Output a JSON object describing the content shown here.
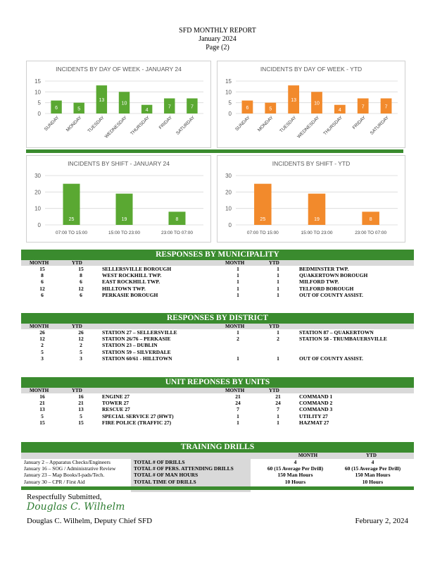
{
  "header": {
    "line1": "SFD MONTHLY REPORT",
    "line2": "January 2024",
    "line3": "Page (2)"
  },
  "charts": [
    {
      "type": "bar",
      "title": "INCIDENTS BY DAY OF WEEK - JANUARY 24",
      "color": "#5aa832",
      "categories": [
        "SUNDAY",
        "MONDAY",
        "TUESDAY",
        "WEDNESDAY",
        "THURSDAY",
        "FRIDAY",
        "SATURDAY"
      ],
      "values": [
        6,
        5,
        13,
        10,
        4,
        7,
        7
      ],
      "yticks": [
        0,
        5,
        10,
        15
      ],
      "ylim": [
        0,
        15
      ]
    },
    {
      "type": "bar",
      "title": "INCIDENTS BY DAY OF WEEK - YTD",
      "color": "#f28a2c",
      "categories": [
        "SUNDAY",
        "MONDAY",
        "TUESDAY",
        "WEDNESDAY",
        "THURSDAY",
        "FRIDAY",
        "SATURDAY"
      ],
      "values": [
        6,
        5,
        13,
        10,
        4,
        7,
        7
      ],
      "yticks": [
        0,
        5,
        10,
        15
      ],
      "ylim": [
        0,
        15
      ]
    },
    {
      "type": "bar",
      "title": "INCIDENTS BY SHIFT - JANUARY 24",
      "color": "#5aa832",
      "categories": [
        "07:00 TO 15:00",
        "15:00 TO 23:00",
        "23:00 TO 07:00"
      ],
      "values": [
        25,
        19,
        8
      ],
      "yticks": [
        0,
        10,
        20,
        30
      ],
      "ylim": [
        0,
        30
      ]
    },
    {
      "type": "bar",
      "title": "INCIDENTS BY SHIFT - YTD",
      "color": "#f28a2c",
      "categories": [
        "07:00 TO 15:00",
        "15:00 TO 23:00",
        "23:00 TO 07:00"
      ],
      "values": [
        25,
        19,
        8
      ],
      "yticks": [
        0,
        10,
        20,
        30
      ],
      "ylim": [
        0,
        30
      ]
    }
  ],
  "col_headers": {
    "month": "MONTH",
    "ytd": "YTD"
  },
  "municipality": {
    "title": "RESPONSES BY MUNICIPALITY",
    "rows": [
      {
        "m": "15",
        "y": "15",
        "name": "SELLERSVILLE BOROUGH",
        "m2": "1",
        "y2": "1",
        "name2": "BEDMINSTER TWP."
      },
      {
        "m": "8",
        "y": "8",
        "name": "WEST ROCKHILL TWP.",
        "m2": "1",
        "y2": "1",
        "name2": "QUAKERTOWN BOROUGH"
      },
      {
        "m": "6",
        "y": "6",
        "name": "EAST ROCKHILL TWP.",
        "m2": "1",
        "y2": "1",
        "name2": "MILFORD TWP."
      },
      {
        "m": "12",
        "y": "12",
        "name": "HILLTOWN TWP.",
        "m2": "1",
        "y2": "1",
        "name2": "TELFORD BOROUGH"
      },
      {
        "m": "6",
        "y": "6",
        "name": "PERKASIE BOROUGH",
        "m2": "1",
        "y2": "1",
        "name2": "OUT OF COUNTY ASSIST."
      }
    ]
  },
  "district": {
    "title": "RESPONSES BY DISTRICT",
    "rows": [
      {
        "m": "26",
        "y": "26",
        "name": "STATION 27 – SELLERSVILLE",
        "m2": "1",
        "y2": "1",
        "name2": "STATION 87 – QUAKERTOWN"
      },
      {
        "m": "12",
        "y": "12",
        "name": "STATION 26/76 – PERKASIE",
        "m2": "2",
        "y2": "2",
        "name2": "STATION 58 - TRUMBAUERSVILLE"
      },
      {
        "m": "2",
        "y": "2",
        "name": "STATION 23 – DUBLIN",
        "m2": "",
        "y2": "",
        "name2": ""
      },
      {
        "m": "5",
        "y": "5",
        "name": "STATION 59 – SILVERDALE",
        "m2": "",
        "y2": "",
        "name2": ""
      },
      {
        "m": "3",
        "y": "3",
        "name": "STATION 60/61 - HILLTOWN",
        "m2": "1",
        "y2": "1",
        "name2": "OUT OF COUNTY ASSIST."
      }
    ]
  },
  "units": {
    "title": "UNIT REPONSES BY UNITS",
    "rows": [
      {
        "m": "16",
        "y": "16",
        "name": "ENGINE 27",
        "m2": "21",
        "y2": "21",
        "name2": "COMMAND 1"
      },
      {
        "m": "21",
        "y": "21",
        "name": "TOWER 27",
        "m2": "24",
        "y2": "24",
        "name2": "COMMAND 2"
      },
      {
        "m": "13",
        "y": "13",
        "name": "RESCUE 27",
        "m2": "7",
        "y2": "7",
        "name2": "COMMAND 3"
      },
      {
        "m": "5",
        "y": "5",
        "name": "SPECIAL SERVICE 27 (HWT)",
        "m2": "1",
        "y2": "1",
        "name2": "UTILITY 27"
      },
      {
        "m": "15",
        "y": "15",
        "name": "FIRE POLICE (TRAFFIC 27)",
        "m2": "1",
        "y2": "1",
        "name2": "HAZMAT 27"
      }
    ]
  },
  "training": {
    "title": "TRAINING DRILLS",
    "month_header": "MONTH",
    "ytd_header": "YTD",
    "drills": [
      "January 2 – Apparatus Checks/Engineers",
      "January 16 – SOG / Administrative Review",
      "January 23 – Map Books/I-pads/Tech.",
      "January 30 – CPR / First Aid"
    ],
    "metrics": [
      "TOTAL # OF DRILLS",
      "TOTAL # OF PERS. ATTENDING DRILLS",
      "TOTAL # OF MAN HOURS",
      "TOTAL TIME OF DRILLS"
    ],
    "month_values": [
      "4",
      "60 (15 Average Per Drill)",
      "150 Man Hours",
      "10 Hours"
    ],
    "ytd_values": [
      "4",
      "60 (15 Average Per Drill)",
      "150 Man Hours",
      "10 Hours"
    ]
  },
  "signature": {
    "closing": "Respectfully Submitted,",
    "signature_text": "Douglas C. Wilhelm",
    "name_title": "Douglas C. Wilhelm, Deputy Chief SFD",
    "date": "February 2, 2024"
  }
}
